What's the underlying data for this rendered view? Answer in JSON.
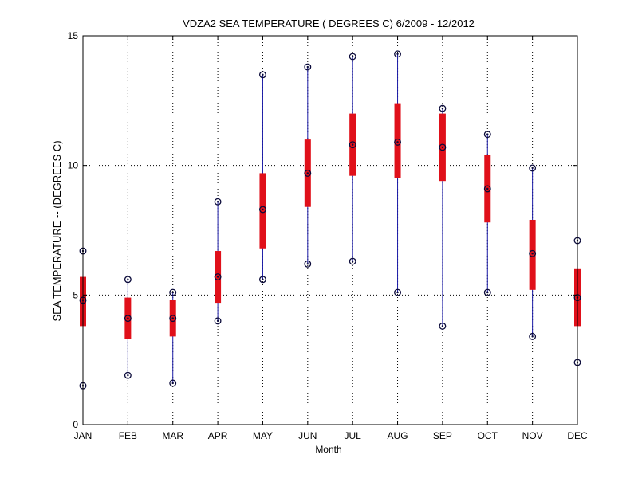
{
  "chart_data": {
    "type": "box",
    "title": "VDZA2  SEA TEMPERATURE ( DEGREES C) 6/2009 - 12/2012",
    "xlabel": "Month",
    "ylabel": "SEA TEMPERATURE -- (DEGREES C)",
    "ylim": [
      0,
      15
    ],
    "yticks": [
      0,
      5,
      10,
      15
    ],
    "grid": true,
    "categories": [
      "JAN",
      "FEB",
      "MAR",
      "APR",
      "MAY",
      "JUN",
      "JUL",
      "AUG",
      "SEP",
      "OCT",
      "NOV",
      "DEC"
    ],
    "series": [
      {
        "name": "min",
        "values": [
          1.5,
          1.9,
          1.6,
          4.0,
          5.6,
          6.2,
          6.3,
          5.1,
          3.8,
          5.1,
          3.4,
          2.4
        ]
      },
      {
        "name": "q1",
        "values": [
          3.8,
          3.3,
          3.4,
          4.7,
          6.8,
          8.4,
          9.6,
          9.5,
          9.4,
          7.8,
          5.2,
          3.8
        ]
      },
      {
        "name": "median",
        "values": [
          4.8,
          4.1,
          4.1,
          5.7,
          8.3,
          9.7,
          10.8,
          10.9,
          10.7,
          9.1,
          6.6,
          4.9
        ]
      },
      {
        "name": "q3",
        "values": [
          5.7,
          4.9,
          4.8,
          6.7,
          9.7,
          11.0,
          12.0,
          12.4,
          12.0,
          10.4,
          7.9,
          6.0
        ]
      },
      {
        "name": "max",
        "values": [
          6.7,
          5.6,
          5.1,
          8.6,
          13.5,
          13.8,
          14.2,
          14.3,
          12.2,
          11.2,
          9.9,
          7.1
        ]
      }
    ],
    "colors": {
      "whisker": "#1a1aa6",
      "box": "#e0101a",
      "marker": "#0a0a3a",
      "grid": "#000000"
    }
  }
}
